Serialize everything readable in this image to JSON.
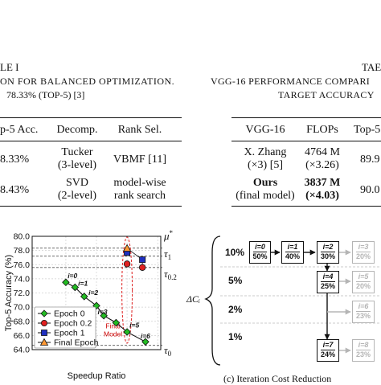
{
  "left_table": {
    "label_fragment": "LE I",
    "caption_line1": "ON FOR BALANCED OPTIMIZATION.",
    "caption_line2": "78.33% (TOP-5) [3]",
    "headers": [
      "p-5 Acc.",
      "Decomp.",
      "Rank Sel."
    ],
    "rows": [
      {
        "acc": "8.33%",
        "decomp_line1": "Tucker",
        "decomp_line2": "(3-level)",
        "rank_line1": "VBMF [11]",
        "rank_line2": ""
      },
      {
        "acc": "8.43%",
        "decomp_line1": "SVD",
        "decomp_line2": "(2-level)",
        "rank_line1": "model-wise",
        "rank_line2": "rank search"
      }
    ]
  },
  "right_table": {
    "label_fragment": "TAE",
    "caption_line1": "VGG-16 PERFORMANCE COMPARI",
    "caption_line2": "TARGET ACCURACY",
    "headers": [
      "VGG-16",
      "FLOPs",
      "Top-5"
    ],
    "rows": [
      {
        "name_line1": "X. Zhang",
        "name_line2": "(×3) [5]",
        "flops_line1": "4764 M",
        "flops_line2": "(×3.26)",
        "top5": "89.9"
      },
      {
        "name_line1": "Ours",
        "name_line2": "(final model)",
        "flops_line1": "3837 M",
        "flops_line2": "(×4.03)",
        "top5": "90.0"
      }
    ]
  },
  "chart_data": {
    "type": "scatter",
    "xlabel": "Speedup Ratio",
    "ylabel": "Top-5 Accuracy (%)",
    "ylim": [
      64.0,
      80.0
    ],
    "xlim": [
      1.45,
      3.55
    ],
    "yticks": [
      "80.0",
      "78.0",
      "76.0",
      "74.0",
      "72.0",
      "70.0",
      "68.0",
      "66.0",
      "64.0"
    ],
    "grid": true,
    "legend_position": "bottom-left",
    "series": [
      {
        "name": "Epoch 0",
        "marker": "diamond",
        "color": "#22bb22",
        "connected": true,
        "points": [
          [
            2.0,
            73.5
          ],
          [
            2.15,
            72.8
          ],
          [
            2.3,
            71.5
          ],
          [
            2.5,
            70.2
          ],
          [
            2.62,
            68.8
          ],
          [
            2.82,
            67.8
          ],
          [
            3.0,
            66.5
          ],
          [
            3.3,
            65.1
          ]
        ]
      },
      {
        "name": "Epoch 0.2",
        "marker": "circle",
        "color": "#e02020",
        "points": [
          [
            3.0,
            76.1
          ],
          [
            3.25,
            75.6
          ]
        ]
      },
      {
        "name": "Epoch 1",
        "marker": "square",
        "color": "#2030c0",
        "points": [
          [
            3.0,
            77.7
          ],
          [
            3.25,
            76.7
          ]
        ]
      },
      {
        "name": "Final Epoch",
        "marker": "triangle",
        "color": "#ff9933",
        "points": [
          [
            3.0,
            78.3
          ]
        ]
      }
    ],
    "point_labels": [
      {
        "text": "i=0",
        "x": 2.03,
        "y": 74.1
      },
      {
        "text": "i=1",
        "x": 2.2,
        "y": 73.0
      },
      {
        "text": "i=2",
        "x": 2.37,
        "y": 71.7
      },
      {
        "text": "i=3",
        "x": 2.52,
        "y": 69.0
      },
      {
        "text": "i=5",
        "x": 3.04,
        "y": 67.1
      },
      {
        "text": "i=6",
        "x": 3.22,
        "y": 65.6
      }
    ],
    "reference_lines": [
      {
        "label": "μ*",
        "y": 78.33
      },
      {
        "label": "τ1",
        "y": 77.2
      },
      {
        "label": "τ0.2",
        "y": 75.6
      },
      {
        "label": "τ0",
        "y": 64.6
      }
    ],
    "annotation": "Final Model",
    "colors": {
      "ellipse": "#e03030",
      "annotation": "#cc0000"
    }
  },
  "flow_diagram": {
    "side_label": "ΔCᵢ",
    "rows": [
      "10%",
      "5%",
      "2%",
      "1%"
    ],
    "top_row_nodes": [
      {
        "i": "i=0",
        "pct": "50%"
      },
      {
        "i": "i=1",
        "pct": "40%"
      },
      {
        "i": "i=2",
        "pct": "30%"
      }
    ],
    "gray_nodes": [
      {
        "i": "i=3",
        "pct": "20%"
      },
      {
        "i": "i=5",
        "pct": "20%"
      },
      {
        "i": "i=6",
        "pct": "23%"
      },
      {
        "i": "i=8",
        "pct": "23%"
      }
    ],
    "dark_nodes": [
      {
        "i": "i=4",
        "pct": "25%"
      },
      {
        "i": "i=7",
        "pct": "24%"
      }
    ],
    "caption": "(c) Iteration Cost Reduction"
  }
}
